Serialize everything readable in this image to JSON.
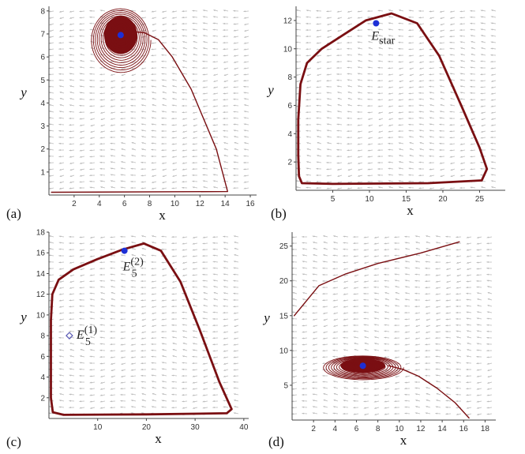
{
  "chart_data": [
    {
      "type": "scatter",
      "panel": "(a)",
      "xlabel": "x",
      "ylabel": "y",
      "xlim": [
        0,
        16.5
      ],
      "ylim": [
        0,
        8.2
      ],
      "xticks": [
        2,
        4,
        6,
        8,
        10,
        12,
        14,
        16
      ],
      "yticks": [
        1,
        2,
        3,
        4,
        5,
        6,
        7,
        8
      ],
      "equilibria": [
        {
          "name": "E_a",
          "x": 5.7,
          "y": 6.95,
          "style": "filled",
          "label": "",
          "sub": "",
          "sup": ""
        }
      ],
      "trajectory": [
        [
          14.2,
          0.15
        ],
        [
          0.2,
          0.12
        ],
        [
          14.2,
          0.15
        ],
        [
          13.3,
          2.0
        ],
        [
          11.3,
          4.6
        ],
        [
          9.8,
          6.0
        ],
        [
          8.7,
          6.75
        ],
        [
          7.6,
          7.05
        ],
        [
          6.7,
          7.1
        ]
      ],
      "spiral": {
        "cx": 5.7,
        "cy": 6.95,
        "rx_max": 2.4,
        "ry_max": 1.5,
        "loops": 14
      }
    },
    {
      "type": "scatter",
      "panel": "(b)",
      "xlabel": "x",
      "ylabel": "y",
      "xlim": [
        0,
        28.5
      ],
      "ylim": [
        0,
        13
      ],
      "xticks": [
        5,
        10,
        15,
        20,
        25
      ],
      "yticks": [
        2,
        4,
        6,
        8,
        10,
        12
      ],
      "equilibria": [
        {
          "name": "E_star",
          "x": 10.9,
          "y": 11.8,
          "style": "filled",
          "label": "E",
          "sub": "star",
          "sup": ""
        }
      ],
      "limit_cycle": [
        [
          0.3,
          5.0
        ],
        [
          0.6,
          7.5
        ],
        [
          1.5,
          9.0
        ],
        [
          3.5,
          10.0
        ],
        [
          6.5,
          11.0
        ],
        [
          9.5,
          12.0
        ],
        [
          13.0,
          12.5
        ],
        [
          16.5,
          11.8
        ],
        [
          19.5,
          9.5
        ],
        [
          22.5,
          6.0
        ],
        [
          25.0,
          3.0
        ],
        [
          26.0,
          1.5
        ],
        [
          25.3,
          0.7
        ],
        [
          18.0,
          0.5
        ],
        [
          5.0,
          0.45
        ],
        [
          0.8,
          0.5
        ],
        [
          0.4,
          1.0
        ],
        [
          0.3,
          2.5
        ],
        [
          0.3,
          5.0
        ]
      ]
    },
    {
      "type": "scatter",
      "panel": "(c)",
      "xlabel": "x",
      "ylabel": "y",
      "xlim": [
        0,
        41
      ],
      "ylim": [
        0,
        18
      ],
      "xticks": [
        10,
        20,
        30,
        40
      ],
      "yticks": [
        2,
        4,
        6,
        8,
        10,
        12,
        14,
        16,
        18
      ],
      "equilibria": [
        {
          "name": "E_5^(1)",
          "x": 4.2,
          "y": 8.0,
          "style": "open",
          "label": "E",
          "sub": "5",
          "sup": "(1)"
        },
        {
          "name": "E_5^(2)",
          "x": 15.5,
          "y": 16.2,
          "style": "filled",
          "label": "E",
          "sub": "5",
          "sup": "(2)"
        }
      ],
      "limit_cycle": [
        [
          0.4,
          9.5
        ],
        [
          0.7,
          12.0
        ],
        [
          2.0,
          13.4
        ],
        [
          5.0,
          14.4
        ],
        [
          10.0,
          15.4
        ],
        [
          15.0,
          16.3
        ],
        [
          19.5,
          16.9
        ],
        [
          23.0,
          16.2
        ],
        [
          27.0,
          13.2
        ],
        [
          31.0,
          8.5
        ],
        [
          35.0,
          3.5
        ],
        [
          37.5,
          0.9
        ],
        [
          36.5,
          0.5
        ],
        [
          20.0,
          0.4
        ],
        [
          3.0,
          0.35
        ],
        [
          0.8,
          0.6
        ],
        [
          0.4,
          2.0
        ],
        [
          0.4,
          5.0
        ],
        [
          0.4,
          9.5
        ]
      ]
    },
    {
      "type": "scatter",
      "panel": "(d)",
      "xlabel": "x",
      "ylabel": "y",
      "xlim": [
        0,
        19
      ],
      "ylim": [
        0,
        27
      ],
      "xticks": [
        2,
        4,
        6,
        8,
        10,
        12,
        14,
        16,
        18
      ],
      "yticks": [
        5,
        10,
        15,
        20,
        25
      ],
      "equilibria": [
        {
          "name": "E_d",
          "x": 6.6,
          "y": 7.8,
          "style": "filled",
          "label": "",
          "sub": "",
          "sup": ""
        }
      ],
      "trajectory": [
        [
          15.6,
          25.6
        ],
        [
          12.0,
          24.0
        ],
        [
          8.0,
          22.5
        ],
        [
          5.0,
          21.0
        ],
        [
          2.5,
          19.3
        ],
        [
          0.2,
          15.0
        ]
      ],
      "trajectory2": [
        [
          16.5,
          0.3
        ],
        [
          15.2,
          2.5
        ],
        [
          13.5,
          4.6
        ],
        [
          11.8,
          6.3
        ],
        [
          10.3,
          7.3
        ],
        [
          9.0,
          7.8
        ]
      ],
      "spiral": {
        "cx": 6.6,
        "cy": 7.8,
        "rx_max": 3.8,
        "ry_max": 1.85,
        "loops": 14
      }
    }
  ]
}
